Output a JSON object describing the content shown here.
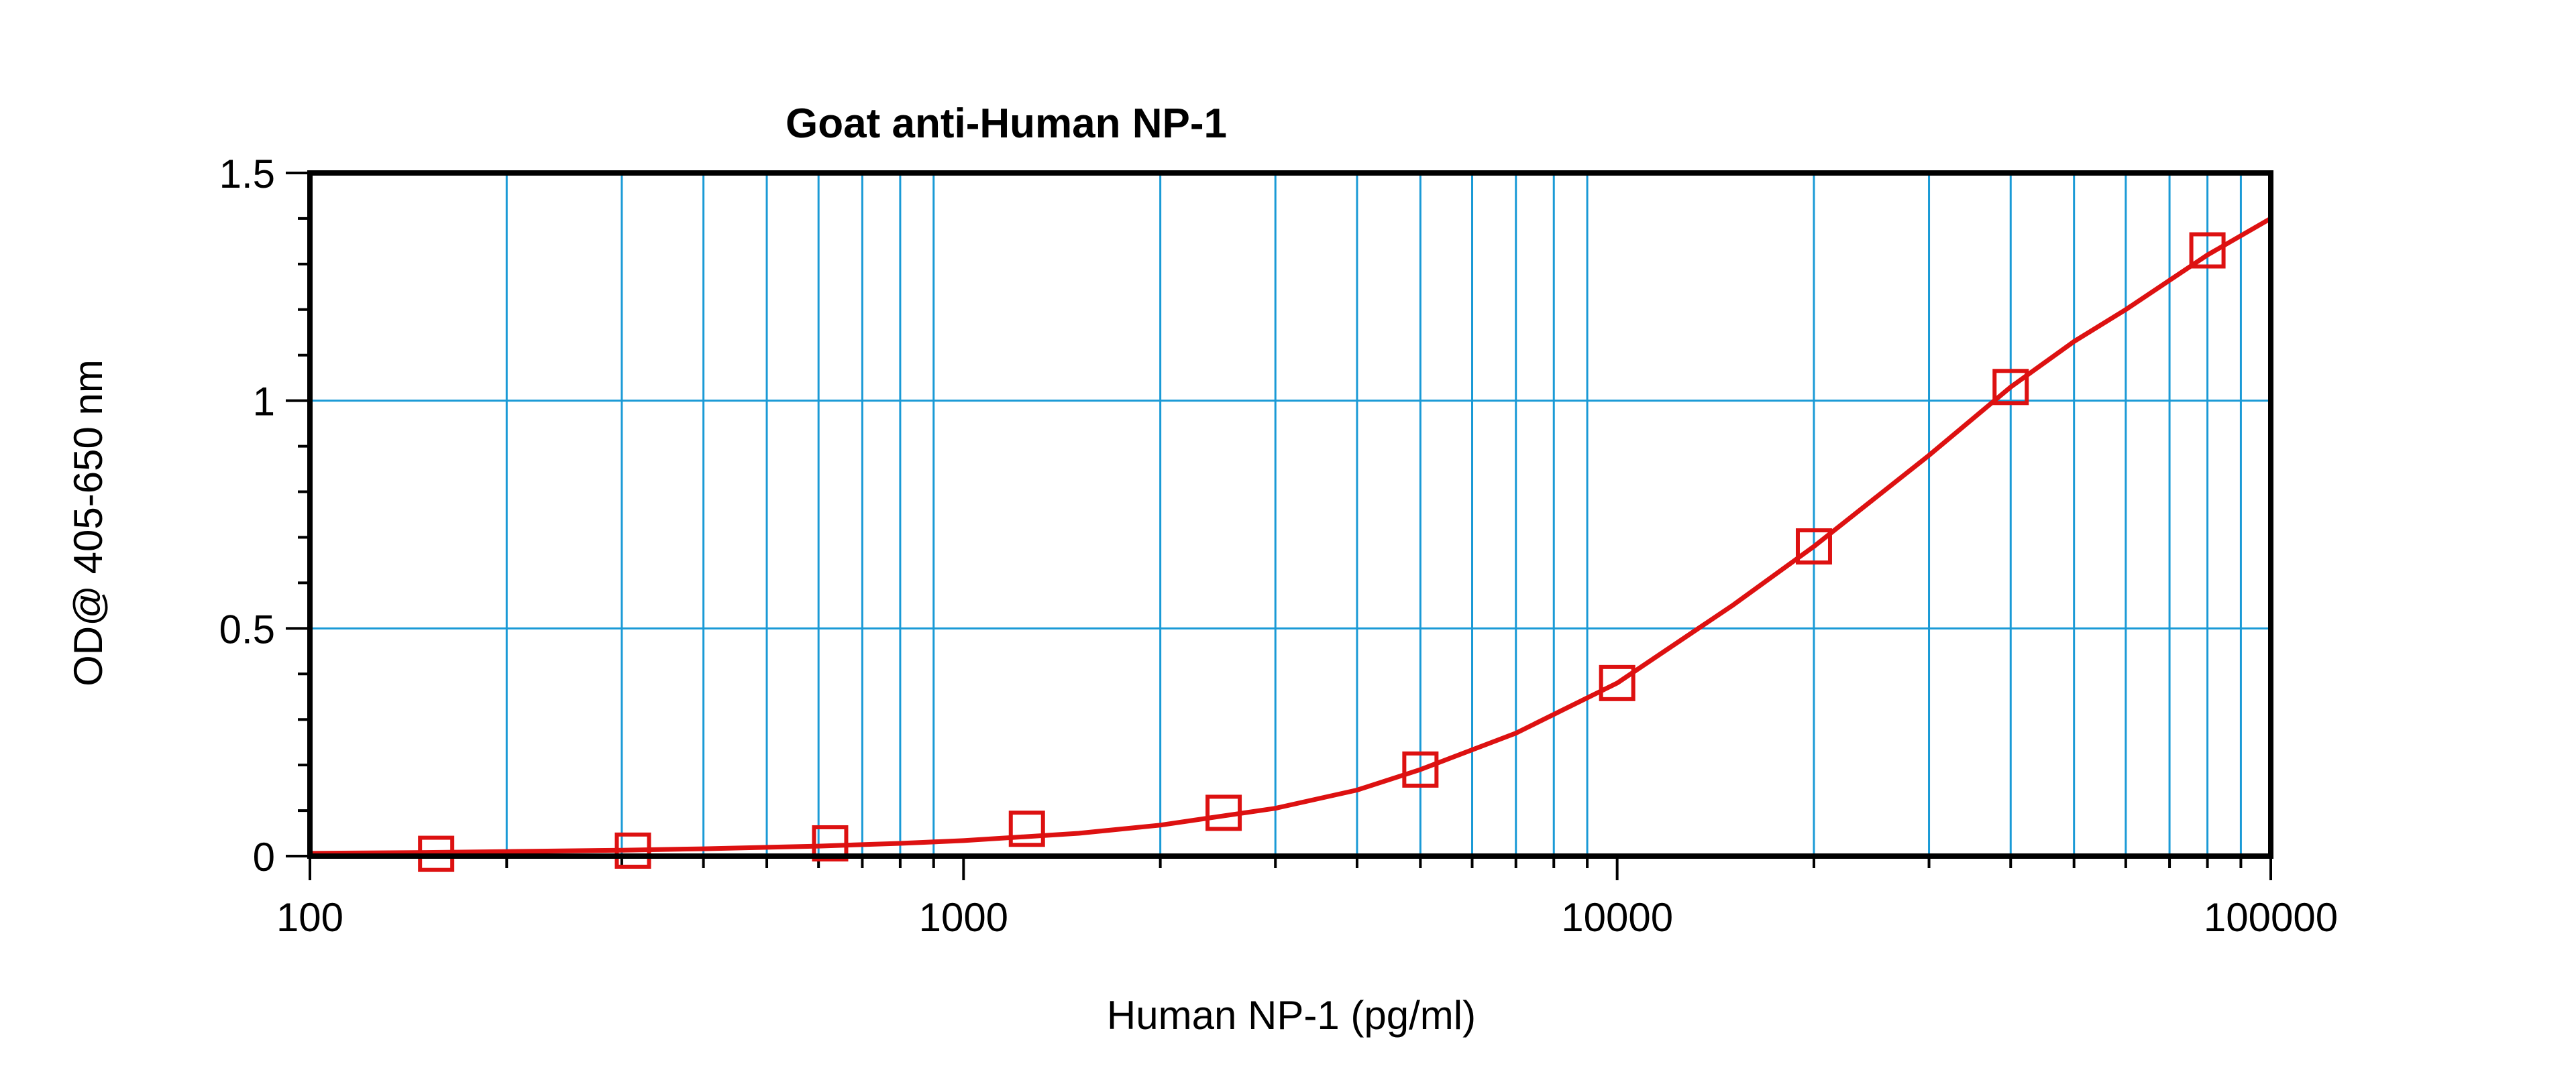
{
  "chart_data": {
    "type": "scatter",
    "title": "Goat anti-Human NP-1",
    "xlabel": "Human NP-1 (pg/ml)",
    "ylabel": "OD@ 405-650 nm",
    "x_scale": "log",
    "xlim": [
      100,
      100000
    ],
    "ylim": [
      0,
      1.5
    ],
    "x_ticks": [
      "100",
      "1000",
      "10000",
      "100000"
    ],
    "y_ticks": [
      "0",
      "0.5",
      "1",
      "1.5"
    ],
    "grid": true,
    "legend": "none",
    "series": [
      {
        "marker": "square",
        "x": [
          156,
          312,
          625,
          1250,
          2500,
          5000,
          10000,
          20000,
          40000,
          80000
        ],
        "y": [
          0.005,
          0.012,
          0.028,
          0.06,
          0.095,
          0.19,
          0.38,
          0.68,
          1.03,
          1.33
        ]
      }
    ],
    "fit_curve": {
      "type": "4PL",
      "x": [
        100,
        150,
        200,
        300,
        400,
        600,
        800,
        1000,
        1500,
        2000,
        3000,
        4000,
        5000,
        7000,
        10000,
        15000,
        20000,
        30000,
        40000,
        50000,
        60000,
        80000,
        100000
      ],
      "y": [
        0.006,
        0.008,
        0.01,
        0.013,
        0.016,
        0.022,
        0.028,
        0.034,
        0.05,
        0.068,
        0.105,
        0.145,
        0.19,
        0.27,
        0.38,
        0.55,
        0.68,
        0.88,
        1.03,
        1.13,
        1.2,
        1.32,
        1.4
      ]
    },
    "colors": {
      "series": "#dd1111",
      "grid": "#1a9ad6",
      "axis": "#000000"
    }
  }
}
